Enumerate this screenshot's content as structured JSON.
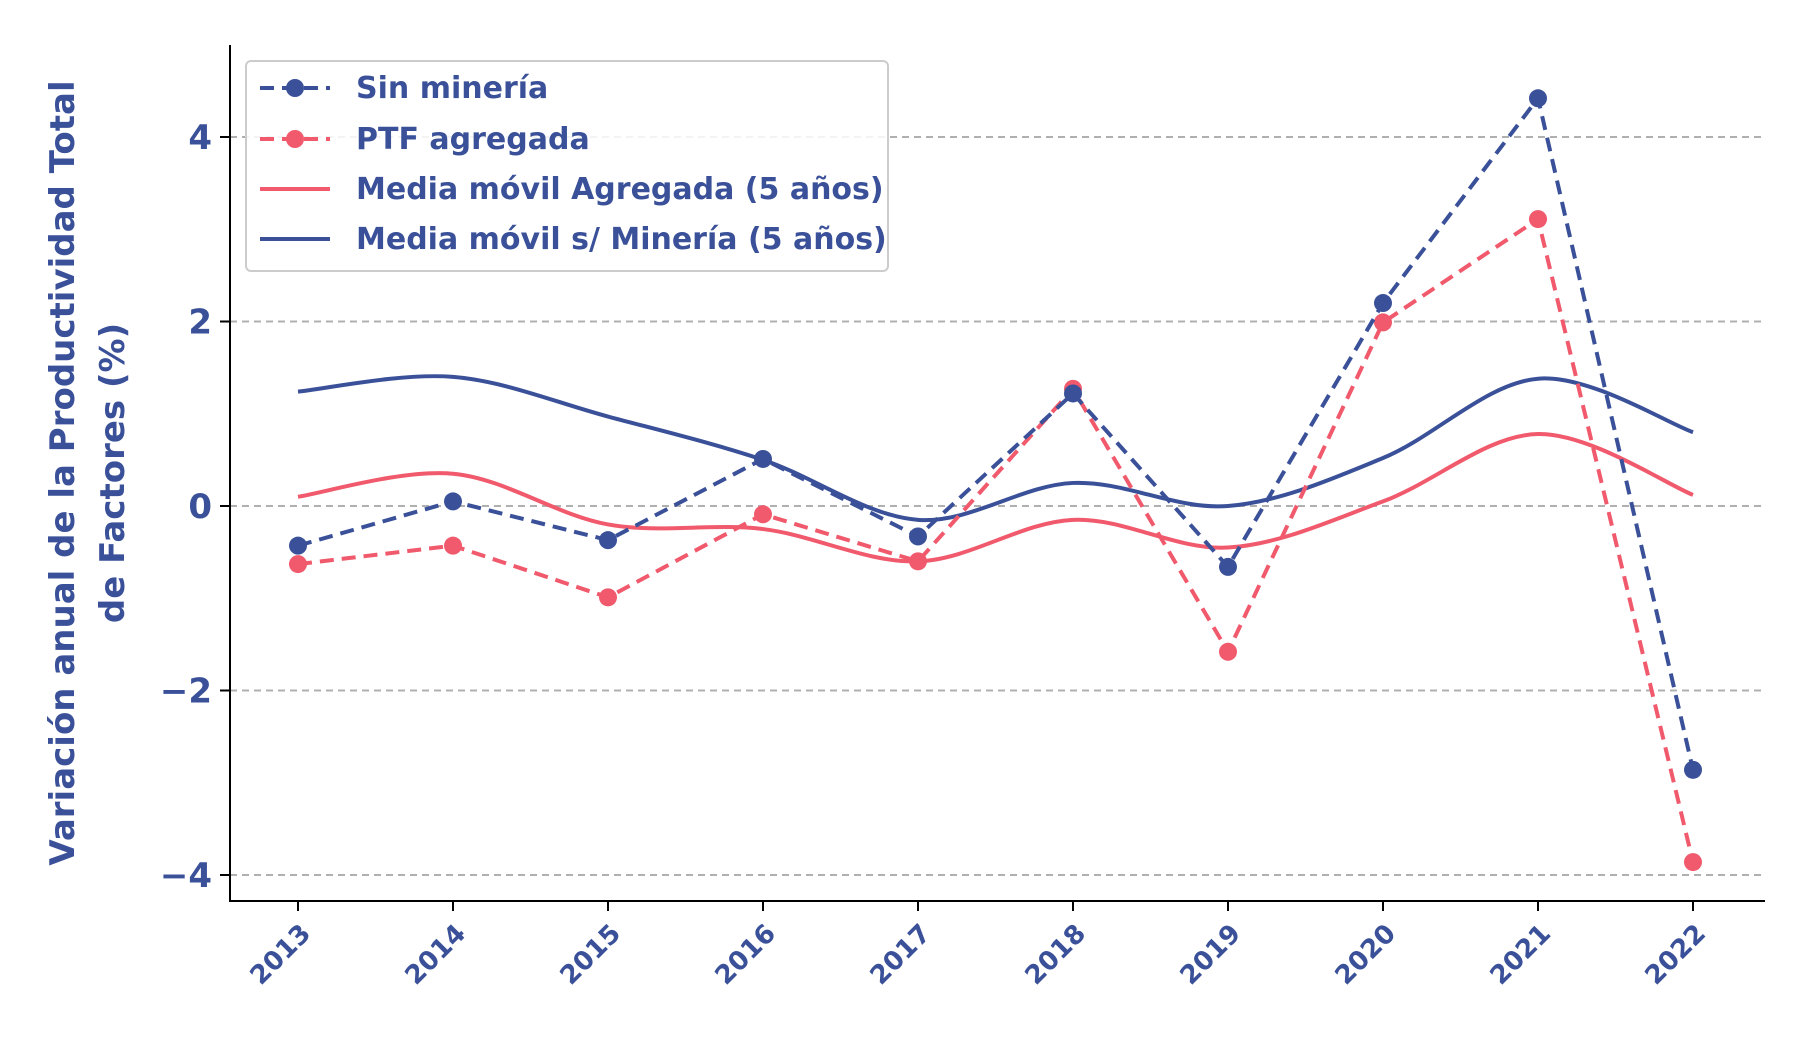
{
  "chart_data": {
    "type": "line",
    "categories": [
      "2013",
      "2014",
      "2015",
      "2016",
      "2017",
      "2018",
      "2019",
      "2020",
      "2021",
      "2022"
    ],
    "series": [
      {
        "name": "Sin minería",
        "style": "dashed-markers",
        "color": "#3a5199",
        "values": [
          -0.43,
          0.05,
          -0.37,
          0.51,
          -0.33,
          1.22,
          -0.66,
          2.2,
          4.42,
          -2.86
        ]
      },
      {
        "name": "PTF agregada",
        "style": "dashed-markers",
        "color": "#f05a6c",
        "values": [
          -0.63,
          -0.43,
          -0.99,
          -0.09,
          -0.6,
          1.27,
          -1.58,
          1.99,
          3.11,
          -3.86
        ]
      },
      {
        "name": "Media móvil Agregada (5 años)",
        "style": "solid-smooth",
        "color": "#f05a6c",
        "values": [
          0.1,
          0.35,
          -0.2,
          -0.25,
          -0.6,
          -0.15,
          -0.45,
          0.05,
          0.78,
          0.12
        ]
      },
      {
        "name": "Media móvil s/ Minería (5 años)",
        "style": "solid-smooth",
        "color": "#3a5199",
        "values": [
          1.24,
          1.4,
          0.97,
          0.5,
          -0.15,
          0.25,
          0.0,
          0.52,
          1.38,
          0.8
        ]
      }
    ],
    "ylabel_line1": "Variación anual de la Productividad Total",
    "ylabel_line2": "de Factores (%)",
    "ylim": [
      -4.3,
      5.1
    ],
    "yticks": [
      -4,
      -2,
      0,
      2,
      4
    ],
    "ytick_labels": [
      "−4",
      "−2",
      "0",
      "2",
      "4"
    ],
    "grid": "horizontal-dashed",
    "legend_position": "top-left",
    "text_color": "#3a5199"
  }
}
